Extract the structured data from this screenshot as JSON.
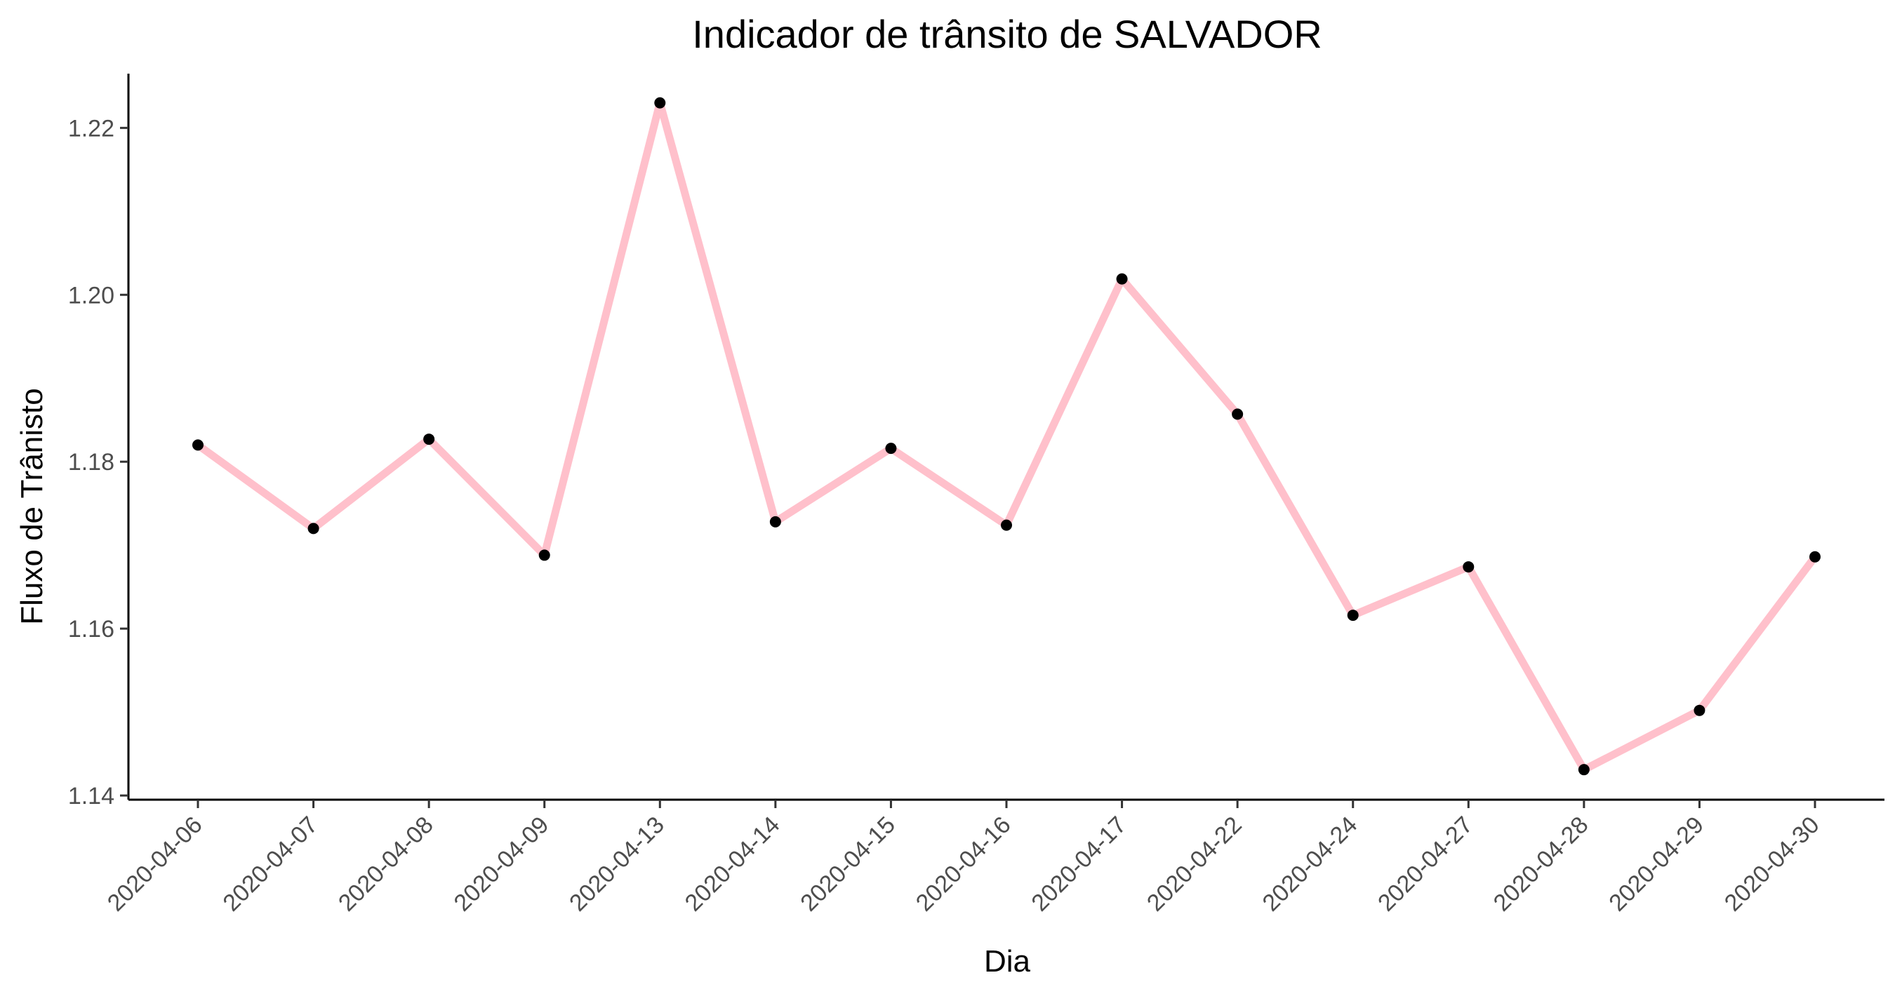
{
  "chart_data": {
    "type": "line",
    "title": "Indicador de trânsito de SALVADOR",
    "xlabel": "Dia",
    "ylabel": "Fluxo de Trânisto",
    "x": [
      "2020-04-06",
      "2020-04-07",
      "2020-04-08",
      "2020-04-09",
      "2020-04-13",
      "2020-04-14",
      "2020-04-15",
      "2020-04-16",
      "2020-04-17",
      "2020-04-22",
      "2020-04-24",
      "2020-04-27",
      "2020-04-28",
      "2020-04-29",
      "2020-04-30"
    ],
    "series": [
      {
        "values": [
          1.182,
          1.172,
          1.1827,
          1.1688,
          1.223,
          1.1728,
          1.1816,
          1.1724,
          1.2019,
          1.1857,
          1.1616,
          1.1674,
          1.1431,
          1.1502,
          1.1686
        ],
        "line_color": "#ffc0cb",
        "point_color": "#000000"
      }
    ],
    "yticks": [
      "1.14",
      "1.16",
      "1.18",
      "1.20",
      "1.22"
    ],
    "ytick_values": [
      1.14,
      1.16,
      1.18,
      1.2,
      1.22
    ],
    "ylim": [
      1.1395,
      1.2265
    ],
    "grid": false,
    "legend": "none"
  }
}
